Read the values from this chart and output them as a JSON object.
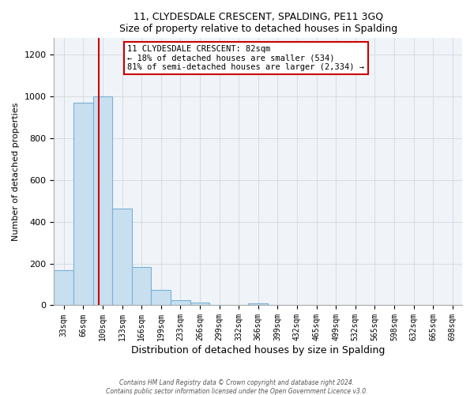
{
  "title1": "11, CLYDESDALE CRESCENT, SPALDING, PE11 3GQ",
  "title2": "Size of property relative to detached houses in Spalding",
  "xlabel": "Distribution of detached houses by size in Spalding",
  "ylabel": "Number of detached properties",
  "bar_labels": [
    "33sqm",
    "66sqm",
    "100sqm",
    "133sqm",
    "166sqm",
    "199sqm",
    "233sqm",
    "266sqm",
    "299sqm",
    "332sqm",
    "366sqm",
    "399sqm",
    "432sqm",
    "465sqm",
    "499sqm",
    "532sqm",
    "565sqm",
    "598sqm",
    "632sqm",
    "665sqm",
    "698sqm"
  ],
  "bar_values": [
    170,
    970,
    1000,
    465,
    185,
    75,
    25,
    15,
    0,
    0,
    10,
    0,
    0,
    0,
    0,
    0,
    0,
    0,
    0,
    0,
    0
  ],
  "bar_color": "#c8dff0",
  "bar_edge_color": "#7ab0d4",
  "property_line_color": "#cc0000",
  "prop_line_bar_index": 1.82,
  "ylim": [
    0,
    1280
  ],
  "yticks": [
    0,
    200,
    400,
    600,
    800,
    1000,
    1200
  ],
  "annotation_title": "11 CLYDESDALE CRESCENT: 82sqm",
  "annotation_line1": "← 18% of detached houses are smaller (534)",
  "annotation_line2": "81% of semi-detached houses are larger (2,334) →",
  "annotation_box_color": "#ffffff",
  "annotation_box_edge": "#cc0000",
  "footer1": "Contains HM Land Registry data © Crown copyright and database right 2024.",
  "footer2": "Contains public sector information licensed under the Open Government Licence v3.0."
}
